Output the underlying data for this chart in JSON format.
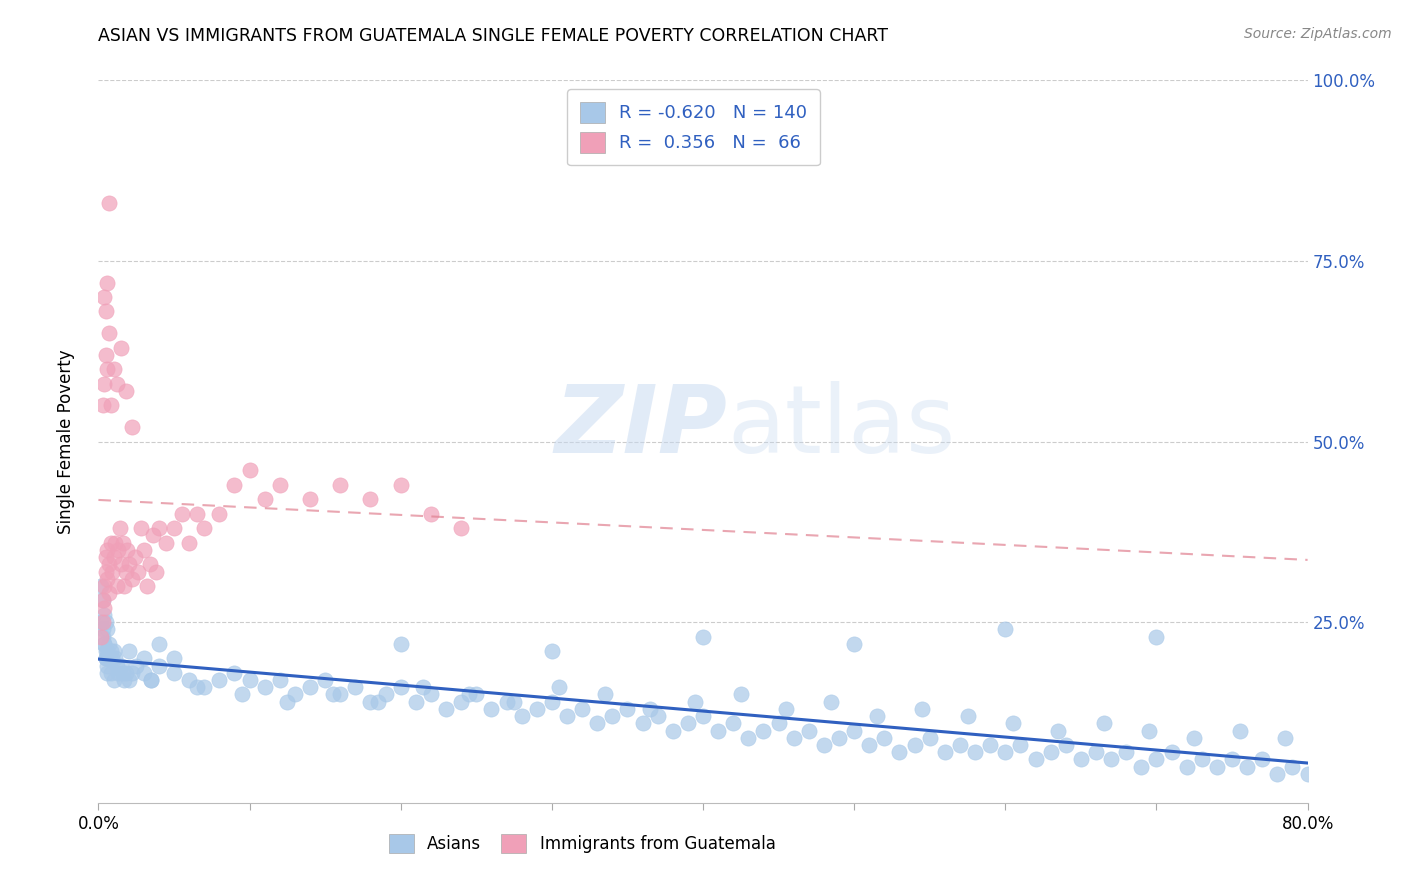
{
  "title": "ASIAN VS IMMIGRANTS FROM GUATEMALA SINGLE FEMALE POVERTY CORRELATION CHART",
  "source": "Source: ZipAtlas.com",
  "ylabel": "Single Female Poverty",
  "legend_label_1": "Asians",
  "legend_label_2": "Immigrants from Guatemala",
  "r1": -0.62,
  "n1": 140,
  "r2": 0.356,
  "n2": 66,
  "color_blue": "#A8C8E8",
  "color_pink": "#F0A0B8",
  "color_blue_line": "#3060C0",
  "color_pink_line": "#E08090",
  "watermark_zip": "ZIP",
  "watermark_atlas": "atlas",
  "xmin": 0.0,
  "xmax": 0.8,
  "ymin": 0.0,
  "ymax": 1.0,
  "yticks": [
    0.0,
    0.25,
    0.5,
    0.75,
    1.0
  ],
  "ytick_labels": [
    "",
    "25.0%",
    "50.0%",
    "75.0%",
    "100.0%"
  ],
  "blue_x": [
    0.002,
    0.002,
    0.003,
    0.003,
    0.004,
    0.004,
    0.005,
    0.005,
    0.005,
    0.006,
    0.006,
    0.006,
    0.007,
    0.007,
    0.008,
    0.008,
    0.009,
    0.01,
    0.01,
    0.011,
    0.012,
    0.013,
    0.015,
    0.016,
    0.017,
    0.018,
    0.02,
    0.022,
    0.025,
    0.03,
    0.035,
    0.04,
    0.05,
    0.06,
    0.07,
    0.08,
    0.09,
    0.1,
    0.11,
    0.12,
    0.13,
    0.14,
    0.15,
    0.16,
    0.17,
    0.18,
    0.19,
    0.2,
    0.21,
    0.22,
    0.23,
    0.24,
    0.25,
    0.26,
    0.27,
    0.28,
    0.29,
    0.3,
    0.31,
    0.32,
    0.33,
    0.34,
    0.35,
    0.36,
    0.37,
    0.38,
    0.39,
    0.4,
    0.41,
    0.42,
    0.43,
    0.44,
    0.45,
    0.46,
    0.47,
    0.48,
    0.49,
    0.5,
    0.51,
    0.52,
    0.53,
    0.54,
    0.55,
    0.56,
    0.57,
    0.58,
    0.59,
    0.6,
    0.61,
    0.62,
    0.63,
    0.64,
    0.65,
    0.66,
    0.67,
    0.68,
    0.69,
    0.7,
    0.71,
    0.72,
    0.73,
    0.74,
    0.75,
    0.76,
    0.77,
    0.78,
    0.79,
    0.8,
    0.035,
    0.065,
    0.095,
    0.125,
    0.155,
    0.185,
    0.215,
    0.245,
    0.275,
    0.305,
    0.335,
    0.365,
    0.395,
    0.425,
    0.455,
    0.485,
    0.515,
    0.545,
    0.575,
    0.605,
    0.635,
    0.665,
    0.695,
    0.725,
    0.755,
    0.785,
    0.003,
    0.004,
    0.005,
    0.006,
    0.02,
    0.03,
    0.04,
    0.05,
    0.2,
    0.3,
    0.4,
    0.5,
    0.6,
    0.7
  ],
  "blue_y": [
    0.3,
    0.25,
    0.28,
    0.23,
    0.26,
    0.22,
    0.25,
    0.21,
    0.2,
    0.24,
    0.21,
    0.19,
    0.22,
    0.2,
    0.21,
    0.18,
    0.2,
    0.21,
    0.17,
    0.2,
    0.19,
    0.18,
    0.19,
    0.18,
    0.17,
    0.18,
    0.17,
    0.18,
    0.19,
    0.18,
    0.17,
    0.19,
    0.18,
    0.17,
    0.16,
    0.17,
    0.18,
    0.17,
    0.16,
    0.17,
    0.15,
    0.16,
    0.17,
    0.15,
    0.16,
    0.14,
    0.15,
    0.16,
    0.14,
    0.15,
    0.13,
    0.14,
    0.15,
    0.13,
    0.14,
    0.12,
    0.13,
    0.14,
    0.12,
    0.13,
    0.11,
    0.12,
    0.13,
    0.11,
    0.12,
    0.1,
    0.11,
    0.12,
    0.1,
    0.11,
    0.09,
    0.1,
    0.11,
    0.09,
    0.1,
    0.08,
    0.09,
    0.1,
    0.08,
    0.09,
    0.07,
    0.08,
    0.09,
    0.07,
    0.08,
    0.07,
    0.08,
    0.07,
    0.08,
    0.06,
    0.07,
    0.08,
    0.06,
    0.07,
    0.06,
    0.07,
    0.05,
    0.06,
    0.07,
    0.05,
    0.06,
    0.05,
    0.06,
    0.05,
    0.06,
    0.04,
    0.05,
    0.04,
    0.17,
    0.16,
    0.15,
    0.14,
    0.15,
    0.14,
    0.16,
    0.15,
    0.14,
    0.16,
    0.15,
    0.13,
    0.14,
    0.15,
    0.13,
    0.14,
    0.12,
    0.13,
    0.12,
    0.11,
    0.1,
    0.11,
    0.1,
    0.09,
    0.1,
    0.09,
    0.24,
    0.22,
    0.2,
    0.18,
    0.21,
    0.2,
    0.22,
    0.2,
    0.22,
    0.21,
    0.23,
    0.22,
    0.24,
    0.23
  ],
  "pink_x": [
    0.002,
    0.003,
    0.003,
    0.004,
    0.004,
    0.005,
    0.005,
    0.006,
    0.006,
    0.007,
    0.007,
    0.008,
    0.009,
    0.01,
    0.011,
    0.012,
    0.013,
    0.014,
    0.015,
    0.016,
    0.017,
    0.018,
    0.019,
    0.02,
    0.022,
    0.024,
    0.026,
    0.028,
    0.03,
    0.032,
    0.034,
    0.036,
    0.038,
    0.04,
    0.045,
    0.05,
    0.055,
    0.06,
    0.065,
    0.07,
    0.08,
    0.09,
    0.1,
    0.11,
    0.12,
    0.14,
    0.16,
    0.18,
    0.2,
    0.22,
    0.24,
    0.003,
    0.004,
    0.005,
    0.006,
    0.007,
    0.008,
    0.01,
    0.012,
    0.015,
    0.018,
    0.022,
    0.004,
    0.005,
    0.006,
    0.007
  ],
  "pink_y": [
    0.23,
    0.25,
    0.28,
    0.27,
    0.3,
    0.32,
    0.34,
    0.35,
    0.31,
    0.33,
    0.29,
    0.36,
    0.32,
    0.34,
    0.36,
    0.3,
    0.35,
    0.38,
    0.33,
    0.36,
    0.3,
    0.32,
    0.35,
    0.33,
    0.31,
    0.34,
    0.32,
    0.38,
    0.35,
    0.3,
    0.33,
    0.37,
    0.32,
    0.38,
    0.36,
    0.38,
    0.4,
    0.36,
    0.4,
    0.38,
    0.4,
    0.44,
    0.46,
    0.42,
    0.44,
    0.42,
    0.44,
    0.42,
    0.44,
    0.4,
    0.38,
    0.55,
    0.58,
    0.62,
    0.6,
    0.65,
    0.55,
    0.6,
    0.58,
    0.63,
    0.57,
    0.52,
    0.7,
    0.68,
    0.72,
    0.83
  ]
}
